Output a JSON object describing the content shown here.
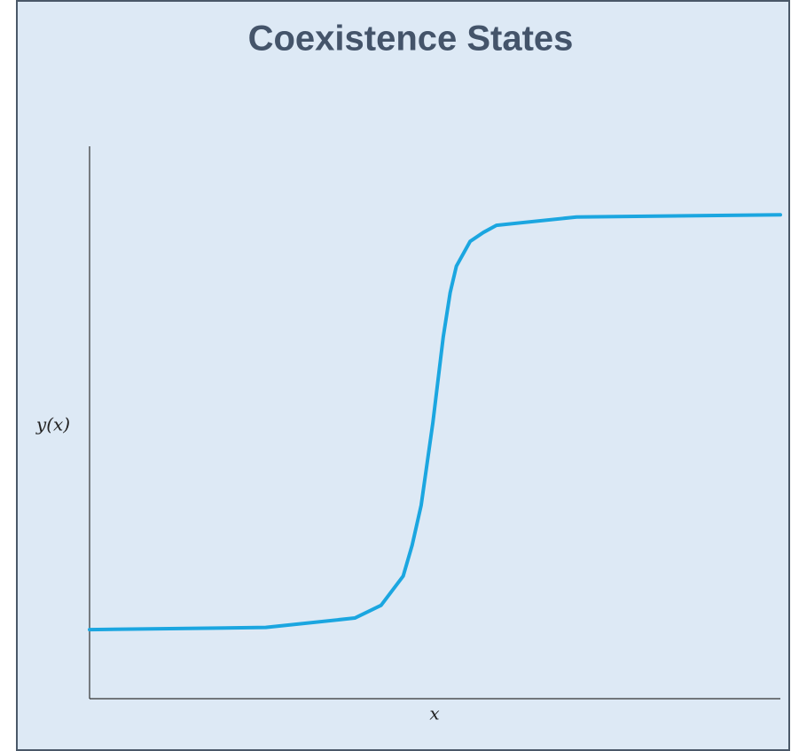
{
  "chart_data": {
    "type": "line",
    "title": "Coexistence States",
    "x_label": "x",
    "y_label": "y(x)",
    "x": [
      0,
      2.55,
      3.84,
      4.22,
      4.54,
      4.67,
      4.8,
      4.97,
      5.12,
      5.22,
      5.31,
      5.51,
      5.7,
      5.89,
      7.05,
      10
    ],
    "series": [
      {
        "name": "y(x)",
        "color": "#1ba6e0",
        "values": [
          1.25,
          1.29,
          1.46,
          1.69,
          2.22,
          2.78,
          3.5,
          5.0,
          6.55,
          7.35,
          7.83,
          8.28,
          8.44,
          8.57,
          8.72,
          8.76
        ]
      }
    ],
    "xlim": [
      0,
      10
    ],
    "ylim": [
      0,
      10
    ]
  }
}
